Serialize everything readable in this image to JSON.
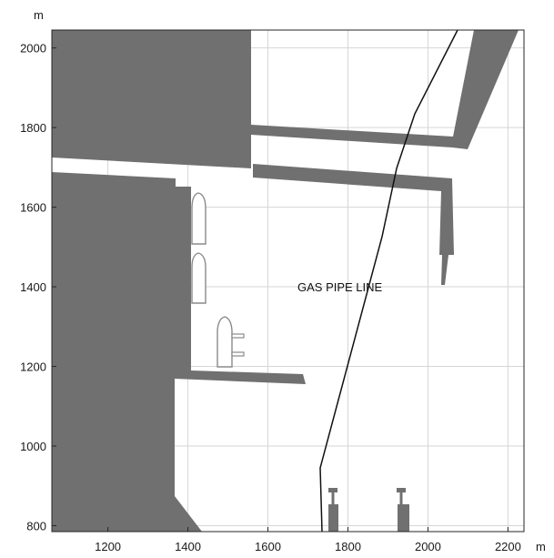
{
  "map": {
    "y_unit": "m",
    "x_unit": "m",
    "annotation": "GAS PIPE LINE",
    "x_range": [
      1060,
      2240
    ],
    "y_range": [
      785,
      2045
    ],
    "x_ticks": [
      "1200",
      "1400",
      "1600",
      "1800",
      "2000",
      "2200"
    ],
    "y_ticks": [
      "800",
      "1000",
      "1200",
      "1400",
      "1600",
      "1800",
      "2000"
    ],
    "grid": true,
    "colors": {
      "land": "#707070",
      "ship_outline": "#8a8a8a",
      "pipeline": "#111111",
      "grid": "#d6d6d6"
    }
  }
}
